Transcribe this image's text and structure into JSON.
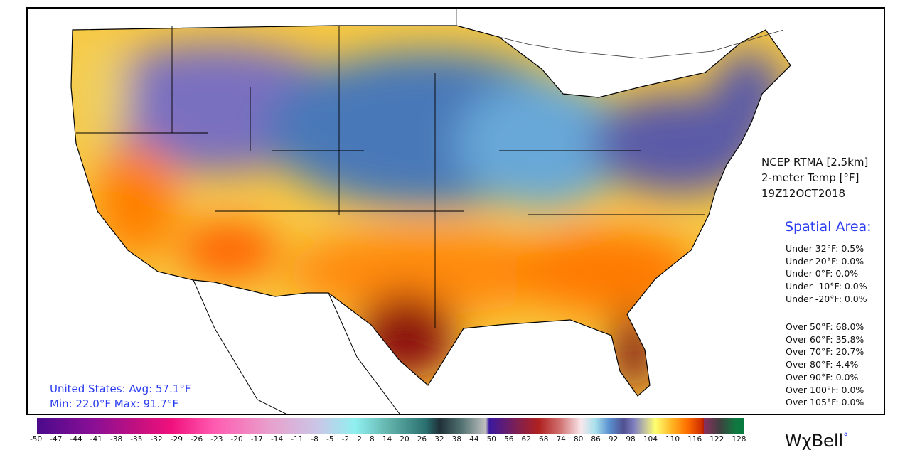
{
  "header": {
    "product": "NCEP RTMA [2.5km]",
    "variable": "2-meter Temp [°F]",
    "valid_time": "19Z12OCT2018"
  },
  "spatial_area": {
    "title": "Spatial Area:",
    "under": [
      "Under 32°F: 0.5%",
      "Under 20°F: 0.0%",
      "Under 0°F: 0.0%",
      "Under -10°F: 0.0%",
      "Under -20°F: 0.0%"
    ],
    "over": [
      "Over 50°F: 68.0%",
      "Over 60°F: 35.8%",
      "Over 70°F: 20.7%",
      "Over 80°F: 4.4%",
      "Over 90°F: 0.0%",
      "Over 100°F: 0.0%",
      "Over 105°F: 0.0%"
    ]
  },
  "summary": {
    "line1": "United States: Avg:  57.1°F",
    "line2": "Min:  22.0°F Max:  91.7°F"
  },
  "colorbar": {
    "units": "°F",
    "ticks": [
      "-50",
      "-47",
      "-44",
      "-41",
      "-38",
      "-35",
      "-32",
      "-29",
      "-26",
      "-23",
      "-20",
      "-17",
      "-14",
      "-11",
      "-8",
      "-5",
      "-2",
      "2",
      "8",
      "14",
      "20",
      "26",
      "32",
      "38",
      "44",
      "50",
      "56",
      "62",
      "68",
      "74",
      "80",
      "86",
      "92",
      "98",
      "104",
      "110",
      "116",
      "122",
      "128"
    ]
  },
  "logo": "WχBell",
  "colors": {
    "accent_text": "#2a3cf0",
    "cold": "#4a5aa8",
    "warm": "#ff7a00",
    "hot": "#7a1010"
  }
}
